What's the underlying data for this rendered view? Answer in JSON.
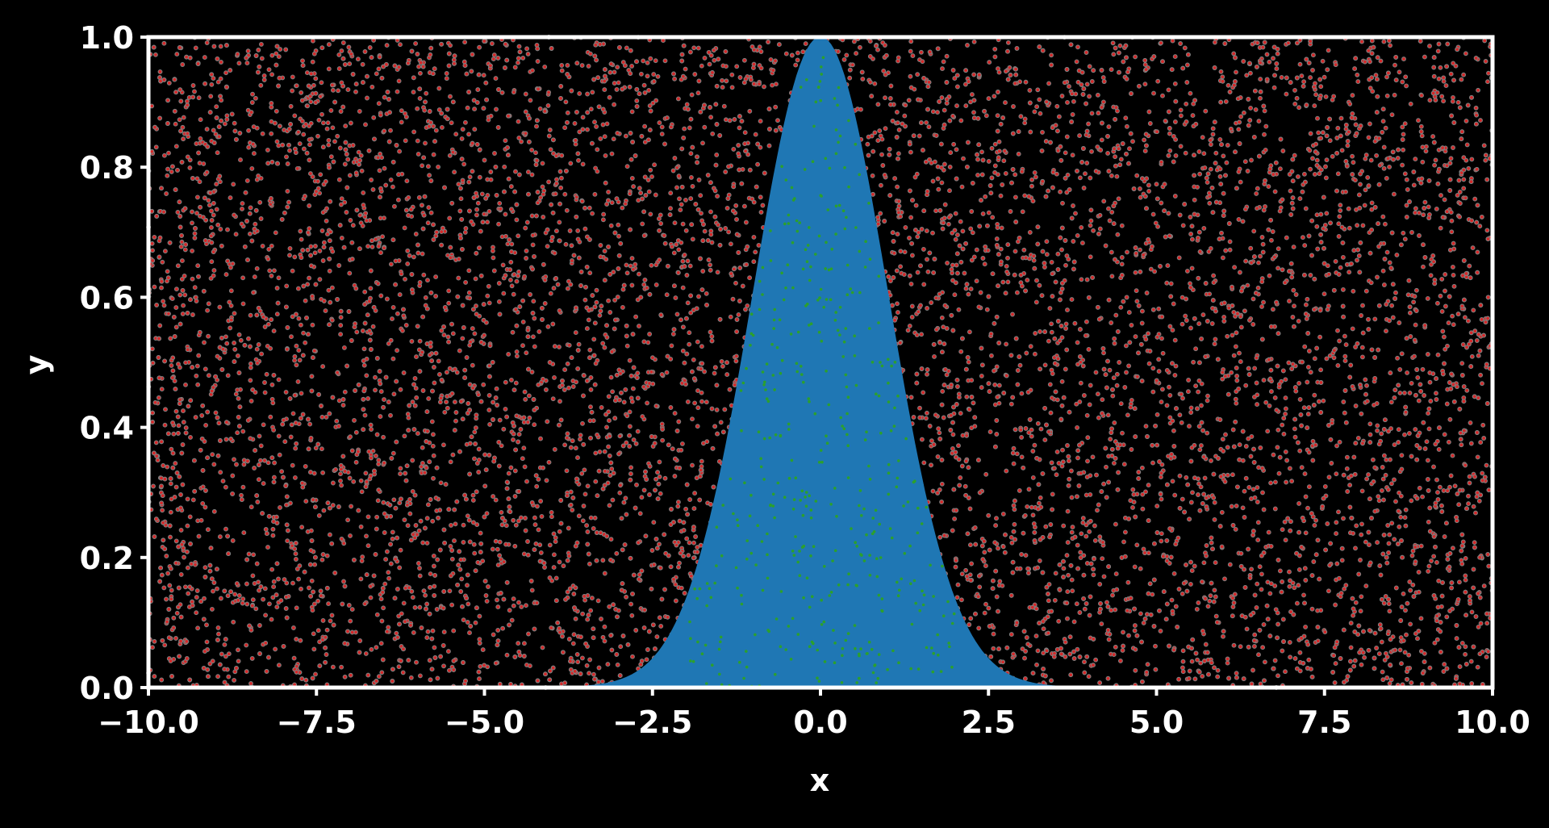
{
  "chart_data": {
    "type": "scatter",
    "title": "",
    "xlabel": "x",
    "ylabel": "y",
    "xlim": [
      -10.0,
      10.0
    ],
    "ylim": [
      0.0,
      1.0
    ],
    "xticks": [
      -10.0,
      -7.5,
      -5.0,
      -2.5,
      0.0,
      2.5,
      5.0,
      7.5,
      10.0
    ],
    "xtick_labels": [
      "−10.0",
      "−7.5",
      "−5.0",
      "−2.5",
      "0.0",
      "2.5",
      "5.0",
      "7.5",
      "10.0"
    ],
    "yticks": [
      0.0,
      0.2,
      0.4,
      0.6,
      0.8,
      1.0
    ],
    "ytick_labels": [
      "0.0",
      "0.2",
      "0.4",
      "0.6",
      "0.8",
      "1.0"
    ],
    "grid": false,
    "legend": "none",
    "series": [
      {
        "kind": "uniform-scatter",
        "color": "#d62728",
        "edge_color": "#7f7f7f",
        "x_range": [
          -10.0,
          10.0
        ],
        "y_range": [
          0.0,
          1.0
        ]
      },
      {
        "kind": "filled-curve",
        "color": "#1f77b4",
        "curve": {
          "function": "exp(-x^2/2)",
          "x_range": [
            -10.0,
            10.0
          ],
          "peak": 1.0,
          "center": 0.0
        }
      },
      {
        "kind": "scatter-under-curve",
        "color": "#2ca02c",
        "x_range": [
          -2.0,
          2.0
        ],
        "y_range": [
          0.0,
          1.0
        ]
      }
    ]
  },
  "colors": {
    "background": "#000000",
    "axes": "#ffffff",
    "text": "#ffffff"
  }
}
